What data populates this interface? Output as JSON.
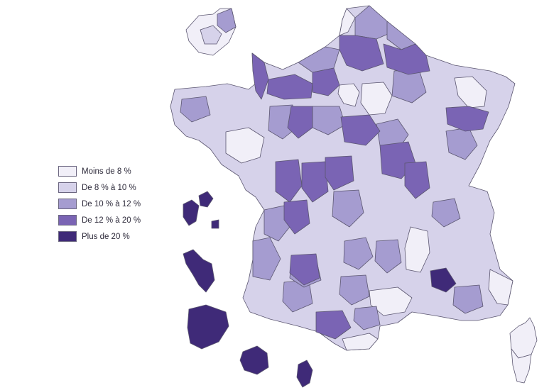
{
  "legend": {
    "items": [
      {
        "label": "Moins de 8 %",
        "class_id": "c1",
        "color": "#f1eff8"
      },
      {
        "label": "De 8 % à 10 %",
        "class_id": "c2",
        "color": "#d6d2ea"
      },
      {
        "label": "De 10 % à 12 %",
        "class_id": "c3",
        "color": "#a59cd0"
      },
      {
        "label": "De 12 % à 20 %",
        "class_id": "c4",
        "color": "#7a64b4"
      },
      {
        "label": "Plus de 20 %",
        "class_id": "c5",
        "color": "#3f2a78"
      }
    ]
  },
  "overseas_territories": [
    {
      "id": "guadeloupe",
      "class_id": "c5"
    },
    {
      "id": "martinique",
      "class_id": "c5"
    },
    {
      "id": "guyane",
      "class_id": "c5"
    },
    {
      "id": "la-reunion",
      "class_id": "c5"
    },
    {
      "id": "mayotte",
      "class_id": "c5"
    }
  ]
}
